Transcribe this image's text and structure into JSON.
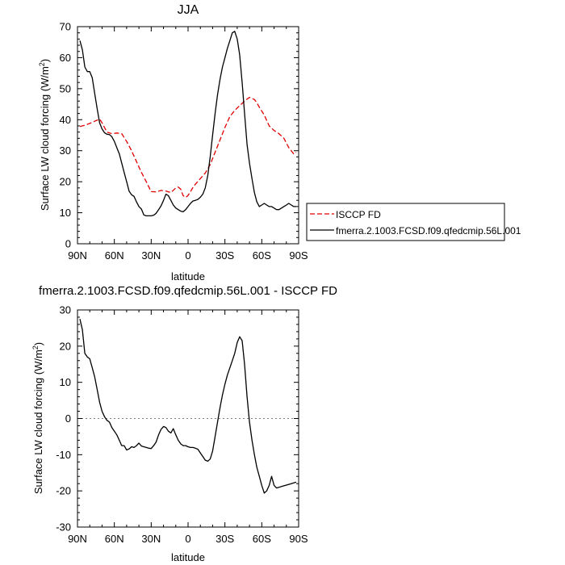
{
  "chart_data": [
    {
      "type": "line",
      "title": "JJA",
      "xlabel": "latitude",
      "ylabel": "Surface LW cloud forcing (W/m",
      "ylabel_sup": "2",
      "ylabel_end": ")",
      "xlim": [
        90,
        -90
      ],
      "ylim": [
        0,
        70
      ],
      "xticks": [
        {
          "x": 90,
          "label": "90N"
        },
        {
          "x": 60,
          "label": "60N"
        },
        {
          "x": 30,
          "label": "30N"
        },
        {
          "x": 0,
          "label": "0"
        },
        {
          "x": -30,
          "label": "30S"
        },
        {
          "x": -60,
          "label": "60S"
        },
        {
          "x": -90,
          "label": "90S"
        }
      ],
      "yticks": [
        0,
        10,
        20,
        30,
        40,
        50,
        60,
        70
      ],
      "legend_position": "right",
      "legend": [
        "ISCCP FD",
        "fmerra.2.1003.FCSD.f09.qfedcmip.56L.001"
      ],
      "series": [
        {
          "name": "ISCCP FD",
          "color": "#e00000",
          "dash": true,
          "x": [
            88,
            84,
            80,
            76,
            72,
            70,
            66,
            62,
            58,
            54,
            50,
            46,
            42,
            38,
            34,
            30,
            26,
            22,
            18,
            14,
            10,
            8,
            6,
            4,
            2,
            0,
            -2,
            -4,
            -6,
            -10,
            -14,
            -18,
            -22,
            -26,
            -30,
            -34,
            -38,
            -42,
            -46,
            -50,
            -54,
            -56,
            -58,
            -62,
            -66,
            -70,
            -74,
            -78,
            -82,
            -86,
            -88
          ],
          "y": [
            37.8,
            38.2,
            38.8,
            39.5,
            40.2,
            39.0,
            36.0,
            35.5,
            35.7,
            35.5,
            33.0,
            30.0,
            26.5,
            23.0,
            20.0,
            16.8,
            16.7,
            17.2,
            17.0,
            16.5,
            18.0,
            18.3,
            17.6,
            15.5,
            14.9,
            15.6,
            16.8,
            18.2,
            19.2,
            21.0,
            22.8,
            25.5,
            29.5,
            33.5,
            37.5,
            41.0,
            43.0,
            44.5,
            46.0,
            47.2,
            46.5,
            45.5,
            44.0,
            41.5,
            38.0,
            36.5,
            35.5,
            34.0,
            31.0,
            29.0,
            29.5
          ]
        },
        {
          "name": "fmerra.2.1003.FCSD.f09.qfedcmip.56L.001",
          "color": "#000000",
          "dash": false,
          "x": [
            88,
            86,
            84,
            82,
            80,
            78,
            76,
            74,
            72,
            70,
            68,
            66,
            64,
            62,
            60,
            58,
            56,
            54,
            52,
            50,
            48,
            46,
            44,
            42,
            40,
            38,
            36,
            34,
            32,
            30,
            28,
            26,
            24,
            22,
            20,
            18,
            16,
            14,
            12,
            10,
            8,
            6,
            4,
            2,
            0,
            -2,
            -4,
            -6,
            -8,
            -10,
            -12,
            -14,
            -16,
            -18,
            -20,
            -22,
            -24,
            -26,
            -28,
            -30,
            -32,
            -34,
            -36,
            -38,
            -40,
            -42,
            -44,
            -46,
            -48,
            -50,
            -52,
            -54,
            -56,
            -58,
            -60,
            -62,
            -64,
            -66,
            -68,
            -70,
            -72,
            -74,
            -76,
            -78,
            -80,
            -82,
            -84,
            -86,
            -88
          ],
          "y": [
            65.5,
            62.5,
            57.0,
            55.5,
            55.5,
            53.5,
            48.5,
            43.5,
            39.0,
            37.0,
            35.8,
            35.3,
            35.2,
            34.5,
            33.0,
            31.0,
            29.0,
            26.0,
            23.0,
            20.0,
            17.0,
            15.8,
            15.3,
            13.5,
            12.0,
            11.2,
            9.3,
            9.0,
            9.0,
            9.0,
            9.2,
            9.8,
            11.0,
            12.2,
            14.0,
            16.0,
            15.5,
            14.0,
            12.5,
            11.5,
            11.0,
            10.5,
            10.3,
            11.0,
            12.0,
            13.0,
            13.8,
            14.0,
            14.3,
            15.0,
            16.0,
            18.0,
            22.0,
            28.0,
            35.0,
            42.0,
            48.0,
            53.0,
            57.0,
            60.0,
            63.0,
            65.5,
            68.0,
            68.5,
            66.0,
            61.0,
            52.0,
            42.0,
            32.0,
            26.0,
            21.0,
            16.5,
            13.5,
            12.0,
            12.5,
            13.0,
            12.5,
            12.0,
            12.0,
            11.5,
            11.0,
            11.0,
            11.5,
            12.0,
            12.5,
            13.0,
            12.5,
            12.0,
            12.0
          ]
        }
      ]
    },
    {
      "type": "line",
      "title": "fmerra.2.1003.FCSD.f09.qfedcmip.56L.001 - ISCCP FD",
      "xlabel": "latitude",
      "ylabel": "Surface LW cloud forcing (W/m",
      "ylabel_sup": "2",
      "ylabel_end": ")",
      "xlim": [
        90,
        -90
      ],
      "ylim": [
        -30,
        30
      ],
      "xticks": [
        {
          "x": 90,
          "label": "90N"
        },
        {
          "x": 60,
          "label": "60N"
        },
        {
          "x": 30,
          "label": "30N"
        },
        {
          "x": 0,
          "label": "0"
        },
        {
          "x": -30,
          "label": "30S"
        },
        {
          "x": -60,
          "label": "60S"
        },
        {
          "x": -90,
          "label": "90S"
        }
      ],
      "yticks": [
        -30,
        -20,
        -10,
        0,
        10,
        20,
        30
      ],
      "series": [
        {
          "color": "#000000",
          "dash": false,
          "x": [
            88,
            86,
            84,
            82,
            80,
            78,
            76,
            74,
            72,
            70,
            68,
            66,
            64,
            62,
            60,
            58,
            56,
            54,
            52,
            50,
            48,
            46,
            44,
            42,
            40,
            38,
            36,
            34,
            32,
            30,
            28,
            26,
            24,
            22,
            20,
            18,
            16,
            14,
            12,
            10,
            8,
            6,
            4,
            2,
            0,
            -2,
            -4,
            -6,
            -8,
            -10,
            -12,
            -14,
            -16,
            -18,
            -20,
            -22,
            -24,
            -26,
            -28,
            -30,
            -32,
            -34,
            -36,
            -38,
            -40,
            -42,
            -44,
            -46,
            -48,
            -50,
            -52,
            -54,
            -56,
            -58,
            -60,
            -62,
            -64,
            -66,
            -68,
            -70,
            -72,
            -74,
            -76,
            -78,
            -80,
            -82,
            -84,
            -86,
            -88
          ],
          "y": [
            27.5,
            24.5,
            18.0,
            17.0,
            16.5,
            14.0,
            11.5,
            8.0,
            4.5,
            2.0,
            0.5,
            -0.5,
            -1.0,
            -2.5,
            -3.5,
            -4.5,
            -6.0,
            -7.5,
            -7.5,
            -8.7,
            -8.4,
            -7.8,
            -8.0,
            -7.5,
            -6.8,
            -7.6,
            -7.8,
            -8.0,
            -8.2,
            -8.3,
            -7.5,
            -6.5,
            -4.5,
            -3.0,
            -2.2,
            -2.5,
            -3.5,
            -4.0,
            -2.8,
            -4.5,
            -6.0,
            -7.0,
            -7.5,
            -7.5,
            -7.8,
            -8.0,
            -8.0,
            -8.2,
            -8.5,
            -9.5,
            -10.5,
            -11.5,
            -11.8,
            -11.2,
            -9.0,
            -5.0,
            -1.0,
            3.0,
            6.5,
            9.5,
            12.0,
            14.0,
            16.0,
            18.0,
            21.0,
            22.6,
            21.5,
            15.0,
            6.0,
            -1.0,
            -6.0,
            -10.0,
            -13.5,
            -16.0,
            -18.5,
            -20.6,
            -20.0,
            -18.5,
            -16.0,
            -18.5,
            -19.2,
            -19.0,
            -18.8,
            -18.6,
            -18.4,
            -18.2,
            -18.0,
            -17.8,
            -17.6
          ]
        }
      ]
    }
  ]
}
